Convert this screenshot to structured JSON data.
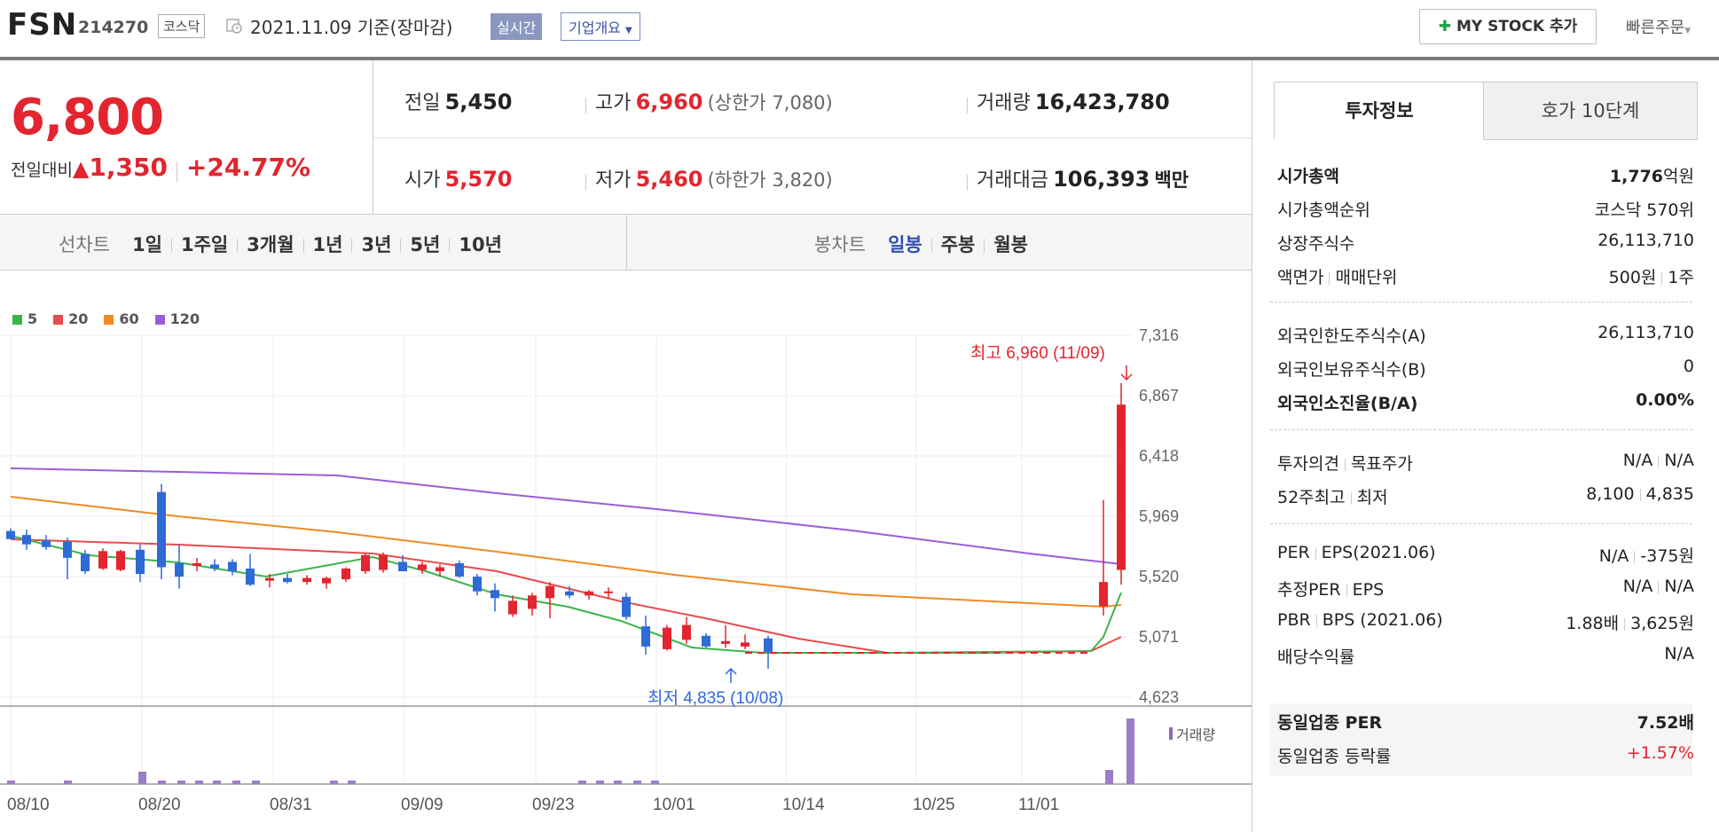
{
  "header": {
    "stock_name": "FSN",
    "stock_code": "214270",
    "market": "코스닥",
    "date_text": "2021.11.09 기준(장마감)",
    "realtime_label": "실시간",
    "overview_label": "기업개요",
    "mystock_label": "MY STOCK 추가",
    "quick_order_label": "빠른주문"
  },
  "price": {
    "current": "6,800",
    "change_label": "전일대비",
    "change": "1,350",
    "change_pct": "+24.77%"
  },
  "summary": {
    "prev_label": "전일",
    "prev": "5,450",
    "high_label": "고가",
    "high": "6,960",
    "upper_limit": "(상한가 7,080)",
    "volume_label": "거래량",
    "volume": "16,423,780",
    "open_label": "시가",
    "open": "5,570",
    "low_label": "저가",
    "low": "5,460",
    "lower_limit": "(하한가 3,820)",
    "amount_label": "거래대금",
    "amount": "106,393",
    "amount_unit": "백만"
  },
  "period_bar": {
    "line_label": "선차트",
    "line_periods": [
      "1일",
      "1주일",
      "3개월",
      "1년",
      "3년",
      "5년",
      "10년"
    ],
    "candle_label": "봉차트",
    "candle_periods": [
      "일봉",
      "주봉",
      "월봉"
    ],
    "candle_selected": "일봉"
  },
  "chart_data": {
    "type": "candlestick",
    "legend": [
      "5",
      "20",
      "60",
      "120"
    ],
    "ma_colors": [
      "#3cb44b",
      "#e84c4c",
      "#f08a24",
      "#9a5dd9"
    ],
    "y_ticks": [
      "7,316",
      "6,867",
      "6,418",
      "5,969",
      "5,520",
      "5,071",
      "4,623"
    ],
    "ylim": [
      4623,
      7316
    ],
    "x_ticks": [
      "08/10",
      "08/20",
      "08/31",
      "09/09",
      "09/23",
      "10/01",
      "10/14",
      "10/25",
      "11/01"
    ],
    "high_annotation": "최고 6,960 (11/09)",
    "low_annotation": "최저 4,835 (10/08)",
    "volume_label": "거래량",
    "candles": [
      {
        "o": 5860,
        "h": 5880,
        "l": 5800,
        "c": 5800
      },
      {
        "o": 5830,
        "h": 5870,
        "l": 5720,
        "c": 5760
      },
      {
        "o": 5790,
        "h": 5830,
        "l": 5720,
        "c": 5740
      },
      {
        "o": 5780,
        "h": 5810,
        "l": 5500,
        "c": 5660
      },
      {
        "o": 5690,
        "h": 5720,
        "l": 5540,
        "c": 5560
      },
      {
        "o": 5580,
        "h": 5730,
        "l": 5570,
        "c": 5710
      },
      {
        "o": 5570,
        "h": 5720,
        "l": 5560,
        "c": 5710
      },
      {
        "o": 5720,
        "h": 5760,
        "l": 5480,
        "c": 5540
      },
      {
        "o": 6150,
        "h": 6210,
        "l": 5500,
        "c": 5590
      },
      {
        "o": 5620,
        "h": 5760,
        "l": 5430,
        "c": 5520
      },
      {
        "o": 5600,
        "h": 5660,
        "l": 5560,
        "c": 5620
      },
      {
        "o": 5610,
        "h": 5650,
        "l": 5560,
        "c": 5580
      },
      {
        "o": 5630,
        "h": 5650,
        "l": 5530,
        "c": 5560
      },
      {
        "o": 5580,
        "h": 5690,
        "l": 5450,
        "c": 5460
      },
      {
        "o": 5490,
        "h": 5540,
        "l": 5440,
        "c": 5510
      },
      {
        "o": 5510,
        "h": 5540,
        "l": 5470,
        "c": 5480
      },
      {
        "o": 5480,
        "h": 5530,
        "l": 5460,
        "c": 5510
      },
      {
        "o": 5470,
        "h": 5520,
        "l": 5430,
        "c": 5510
      },
      {
        "o": 5500,
        "h": 5590,
        "l": 5480,
        "c": 5580
      },
      {
        "o": 5560,
        "h": 5690,
        "l": 5540,
        "c": 5680
      },
      {
        "o": 5570,
        "h": 5700,
        "l": 5550,
        "c": 5680
      },
      {
        "o": 5630,
        "h": 5680,
        "l": 5560,
        "c": 5560
      },
      {
        "o": 5570,
        "h": 5630,
        "l": 5540,
        "c": 5610
      },
      {
        "o": 5560,
        "h": 5610,
        "l": 5520,
        "c": 5590
      },
      {
        "o": 5620,
        "h": 5640,
        "l": 5510,
        "c": 5520
      },
      {
        "o": 5520,
        "h": 5540,
        "l": 5380,
        "c": 5410
      },
      {
        "o": 5420,
        "h": 5470,
        "l": 5260,
        "c": 5360
      },
      {
        "o": 5240,
        "h": 5380,
        "l": 5220,
        "c": 5340
      },
      {
        "o": 5280,
        "h": 5400,
        "l": 5230,
        "c": 5380
      },
      {
        "o": 5360,
        "h": 5480,
        "l": 5210,
        "c": 5450
      },
      {
        "o": 5410,
        "h": 5450,
        "l": 5360,
        "c": 5380
      },
      {
        "o": 5380,
        "h": 5420,
        "l": 5350,
        "c": 5410
      },
      {
        "o": 5400,
        "h": 5440,
        "l": 5360,
        "c": 5410
      },
      {
        "o": 5370,
        "h": 5400,
        "l": 5200,
        "c": 5220
      },
      {
        "o": 5150,
        "h": 5230,
        "l": 4940,
        "c": 5000
      },
      {
        "o": 4980,
        "h": 5160,
        "l": 4970,
        "c": 5140
      },
      {
        "o": 5050,
        "h": 5220,
        "l": 5020,
        "c": 5160
      },
      {
        "o": 5080,
        "h": 5100,
        "l": 4990,
        "c": 5000
      },
      {
        "o": 5020,
        "h": 5160,
        "l": 4990,
        "c": 5040
      },
      {
        "o": 5000,
        "h": 5090,
        "l": 4980,
        "c": 5030
      },
      {
        "o": 5060,
        "h": 5080,
        "l": 4835,
        "c": 4960
      },
      {
        "o": 5300,
        "h": 6090,
        "l": 5230,
        "c": 5480
      },
      {
        "o": 5570,
        "h": 6960,
        "l": 5460,
        "c": 6800
      }
    ]
  },
  "right_panel": {
    "tab_invest": "투자정보",
    "tab_order": "호가 10단계",
    "rows1": [
      {
        "k": "시가총액",
        "v": "1,776",
        "u": "억원",
        "bold": true
      },
      {
        "k": "시가총액순위",
        "v": "코스닥 570위"
      },
      {
        "k": "상장주식수",
        "v": "26,113,710"
      },
      {
        "k": "액면가",
        "k2": "매매단위",
        "v": "500원",
        "v2": "1주"
      }
    ],
    "rows2": [
      {
        "k": "외국인한도주식수(A)",
        "v": "26,113,710"
      },
      {
        "k": "외국인보유주식수(B)",
        "v": "0"
      },
      {
        "k": "외국인소진율(B/A)",
        "v": "0.00%",
        "bold": true
      }
    ],
    "rows3": [
      {
        "k": "투자의견",
        "k2": "목표주가",
        "v": "N/A",
        "v2": "N/A"
      },
      {
        "k": "52주최고",
        "k2": "최저",
        "v": "8,100",
        "v2": "4,835"
      }
    ],
    "rows4": [
      {
        "k": "PER",
        "k2": "EPS(2021.06)",
        "v": "N/A",
        "v2": "-375원"
      },
      {
        "k": "추정PER",
        "k2": "EPS",
        "v": "N/A",
        "v2": "N/A"
      },
      {
        "k": "PBR",
        "k2": "BPS (2021.06)",
        "v": "1.88배",
        "v2": "3,625원"
      },
      {
        "k": "배당수익률",
        "v": "N/A"
      }
    ],
    "peer_per_label": "동일업종 PER",
    "peer_per": "7.52배",
    "peer_change_label": "동일업종 등락률",
    "peer_change": "+1.57%"
  }
}
